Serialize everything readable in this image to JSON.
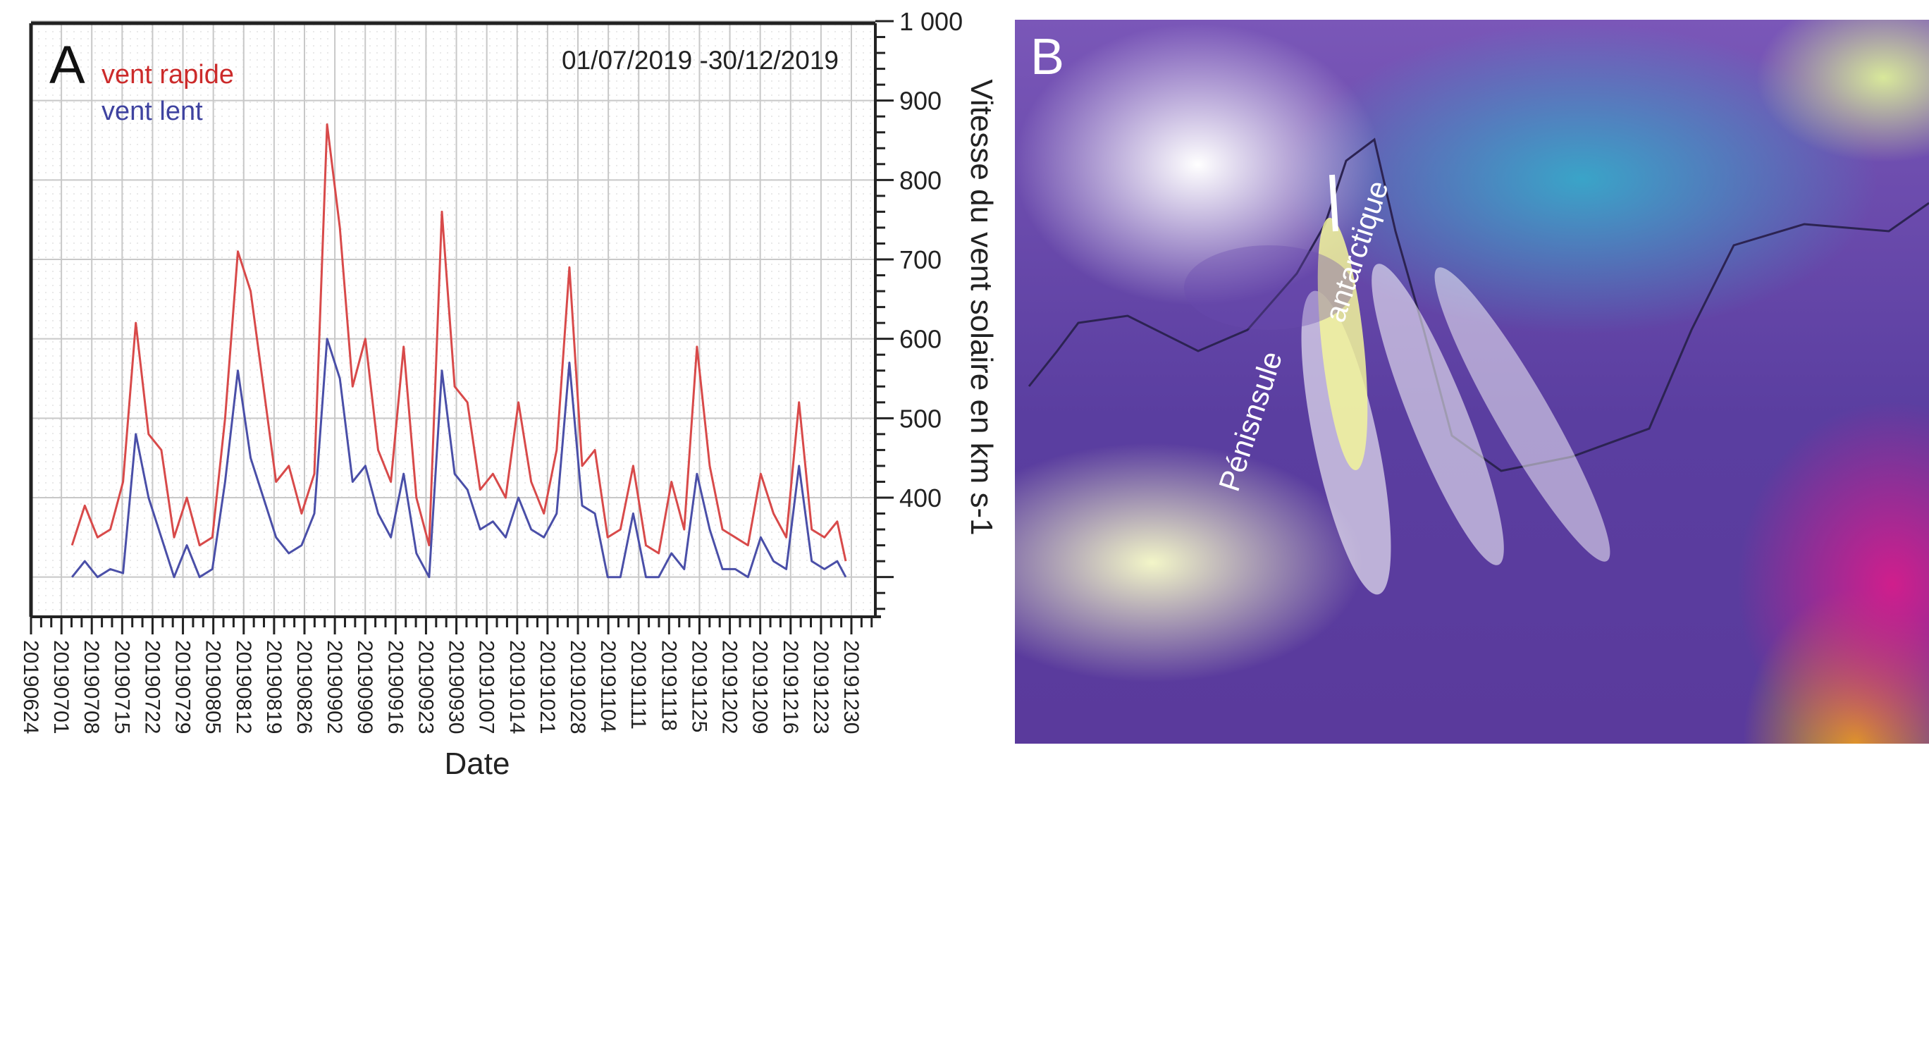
{
  "panel_a": {
    "label": "A",
    "date_range": "01/07/2019 -30/12/2019",
    "x_axis_title": "Date",
    "y_axis_title": "Vitesse du vent solaire en km s-1"
  },
  "panel_b": {
    "label": "B",
    "map_text_1": "Pénisnsule",
    "map_text_2": "antarctique"
  },
  "chart_data": {
    "type": "line",
    "title": "01/07/2019 -30/12/2019",
    "xlabel": "Date",
    "ylabel": "Vitesse du vent solaire en km s-1",
    "ylim": [
      250,
      1000
    ],
    "y_ticks": [
      400,
      500,
      600,
      700,
      800,
      900,
      1000
    ],
    "y_tick_labels": [
      "400",
      "500",
      "600",
      "700",
      "800",
      "900",
      "1 000"
    ],
    "x_tick_labels": [
      "20190624",
      "20190701",
      "20190708",
      "20190715",
      "20190722",
      "20190729",
      "20190805",
      "20190812",
      "20190819",
      "20190826",
      "20190902",
      "20190909",
      "20190916",
      "20190923",
      "20190930",
      "20191007",
      "20191014",
      "20191021",
      "20191028",
      "20191104",
      "20191111",
      "20191118",
      "20191125",
      "20191202",
      "20191209",
      "20191216",
      "20191223",
      "20191230"
    ],
    "grid": true,
    "legend": "top-left",
    "colors": {
      "vent rapide": "#d84a4a",
      "vent lent": "#4a4fa8"
    },
    "series": [
      {
        "name": "vent rapide",
        "x": [
          "2019-07-01",
          "2019-07-04",
          "2019-07-07",
          "2019-07-10",
          "2019-07-13",
          "2019-07-16",
          "2019-07-19",
          "2019-07-22",
          "2019-07-25",
          "2019-07-28",
          "2019-07-31",
          "2019-08-03",
          "2019-08-06",
          "2019-08-09",
          "2019-08-12",
          "2019-08-15",
          "2019-08-18",
          "2019-08-21",
          "2019-08-24",
          "2019-08-27",
          "2019-08-30",
          "2019-09-02",
          "2019-09-05",
          "2019-09-08",
          "2019-09-11",
          "2019-09-14",
          "2019-09-17",
          "2019-09-20",
          "2019-09-23",
          "2019-09-26",
          "2019-09-29",
          "2019-10-02",
          "2019-10-05",
          "2019-10-08",
          "2019-10-11",
          "2019-10-14",
          "2019-10-17",
          "2019-10-20",
          "2019-10-23",
          "2019-10-26",
          "2019-10-29",
          "2019-11-01",
          "2019-11-04",
          "2019-11-07",
          "2019-11-10",
          "2019-11-13",
          "2019-11-16",
          "2019-11-19",
          "2019-11-22",
          "2019-11-25",
          "2019-11-28",
          "2019-12-01",
          "2019-12-04",
          "2019-12-07",
          "2019-12-10",
          "2019-12-13",
          "2019-12-16",
          "2019-12-19",
          "2019-12-22",
          "2019-12-25",
          "2019-12-28",
          "2019-12-30"
        ],
        "values": [
          340,
          390,
          350,
          360,
          420,
          620,
          480,
          460,
          350,
          400,
          340,
          350,
          500,
          710,
          660,
          540,
          420,
          440,
          380,
          430,
          870,
          740,
          540,
          600,
          460,
          420,
          590,
          400,
          340,
          760,
          540,
          520,
          410,
          430,
          400,
          520,
          420,
          380,
          460,
          690,
          440,
          460,
          350,
          360,
          440,
          340,
          330,
          420,
          360,
          590,
          440,
          360,
          350,
          340,
          430,
          380,
          350,
          520,
          360,
          350,
          370,
          320
        ]
      },
      {
        "name": "vent lent",
        "x": [
          "2019-07-01",
          "2019-07-04",
          "2019-07-07",
          "2019-07-10",
          "2019-07-13",
          "2019-07-16",
          "2019-07-19",
          "2019-07-22",
          "2019-07-25",
          "2019-07-28",
          "2019-07-31",
          "2019-08-03",
          "2019-08-06",
          "2019-08-09",
          "2019-08-12",
          "2019-08-15",
          "2019-08-18",
          "2019-08-21",
          "2019-08-24",
          "2019-08-27",
          "2019-08-30",
          "2019-09-02",
          "2019-09-05",
          "2019-09-08",
          "2019-09-11",
          "2019-09-14",
          "2019-09-17",
          "2019-09-20",
          "2019-09-23",
          "2019-09-26",
          "2019-09-29",
          "2019-10-02",
          "2019-10-05",
          "2019-10-08",
          "2019-10-11",
          "2019-10-14",
          "2019-10-17",
          "2019-10-20",
          "2019-10-23",
          "2019-10-26",
          "2019-10-29",
          "2019-11-01",
          "2019-11-04",
          "2019-11-07",
          "2019-11-10",
          "2019-11-13",
          "2019-11-16",
          "2019-11-19",
          "2019-11-22",
          "2019-11-25",
          "2019-11-28",
          "2019-12-01",
          "2019-12-04",
          "2019-12-07",
          "2019-12-10",
          "2019-12-13",
          "2019-12-16",
          "2019-12-19",
          "2019-12-22",
          "2019-12-25",
          "2019-12-28",
          "2019-12-30"
        ],
        "values": [
          300,
          320,
          300,
          310,
          305,
          480,
          400,
          350,
          300,
          340,
          300,
          310,
          420,
          560,
          450,
          400,
          350,
          330,
          340,
          380,
          600,
          550,
          420,
          440,
          380,
          350,
          430,
          330,
          300,
          560,
          430,
          410,
          360,
          370,
          350,
          400,
          360,
          350,
          380,
          570,
          390,
          380,
          300,
          300,
          380,
          300,
          300,
          330,
          310,
          430,
          360,
          310,
          310,
          300,
          350,
          320,
          310,
          440,
          320,
          310,
          320,
          300
        ]
      }
    ]
  }
}
